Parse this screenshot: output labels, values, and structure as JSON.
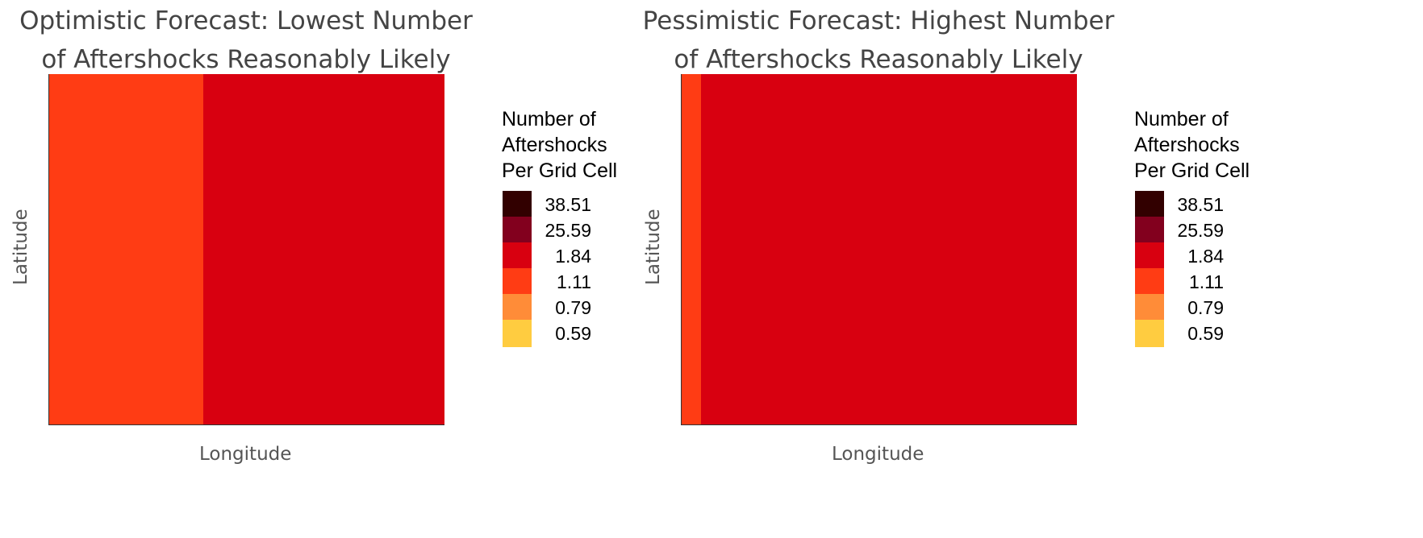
{
  "colors": {
    "palette": [
      "#ffcc40",
      "#ff8c38",
      "#ff3c14",
      "#d80010",
      "#82001e",
      "#320000"
    ],
    "background": "#ffffff"
  },
  "chart_data": [
    {
      "type": "heatmap",
      "title": [
        "Optimistic Forecast: Lowest Number",
        "of Aftershocks Reasonably Likely"
      ],
      "xlabel": "Longitude",
      "ylabel": "Latitude",
      "legend_title": [
        "Number of",
        "Aftershocks",
        "Per Grid Cell"
      ],
      "legend_labels": [
        "38.51",
        "25.59",
        "1.84",
        "1.11",
        "0.79",
        "0.59"
      ],
      "legend_placement": "right",
      "value_note": "cell values are legend class indices: 0=0.59, 1=0.79, 2=1.11, 3=1.84, 4=25.59, 5=38.51; rows listed north to south",
      "grid": [
        "22222222233333333333333",
        "22222222233333333333333",
        "22222222233333333333333",
        "22222222233333333333333",
        "22222222233333333333333",
        "22222222233333333333333",
        "22222222233333333333333",
        "22222222233333333333333",
        "22222222233333333333333",
        "22222222233333333333333",
        "22222222233333333333333",
        "22222222233333333333333",
        "22222222233333333333333",
        "22222222233333333333333",
        "22222222233333333333333",
        "22222222233333333333333",
        "22222222233333333333333",
        "22222222233333333333333"
      ]
    },
    {
      "type": "heatmap",
      "title": [
        "Pessimistic Forecast: Highest Number",
        "of Aftershocks Reasonably Likely"
      ],
      "xlabel": "Longitude",
      "ylabel": "Latitude",
      "legend_title": [
        "Number of",
        "Aftershocks",
        "Per Grid Cell"
      ],
      "legend_labels": [
        "38.51",
        "25.59",
        "1.84",
        "1.11",
        "0.79",
        "0.59"
      ],
      "legend_placement": "right",
      "value_note": "cell values are legend class indices: 0=0.59, 1=0.79, 2=1.11, 3=1.84, 4=25.59, 5=38.51; rows listed north to south",
      "grid": [
        "23333333333333333333",
        "23333333333333333333",
        "23333333333333333333",
        "23333333333333333333",
        "23333333333333333333",
        "23333333333333333333",
        "23333333333333333333",
        "23333333333333333333",
        "23333333333333333333",
        "23333333333333333333",
        "23333333333333333333",
        "23333333333333333333",
        "23333333333333333333",
        "23333333333333333333",
        "23333333333333333333",
        "23333333333333333333",
        "23333333333333333333",
        "23333333333333333333"
      ]
    }
  ]
}
